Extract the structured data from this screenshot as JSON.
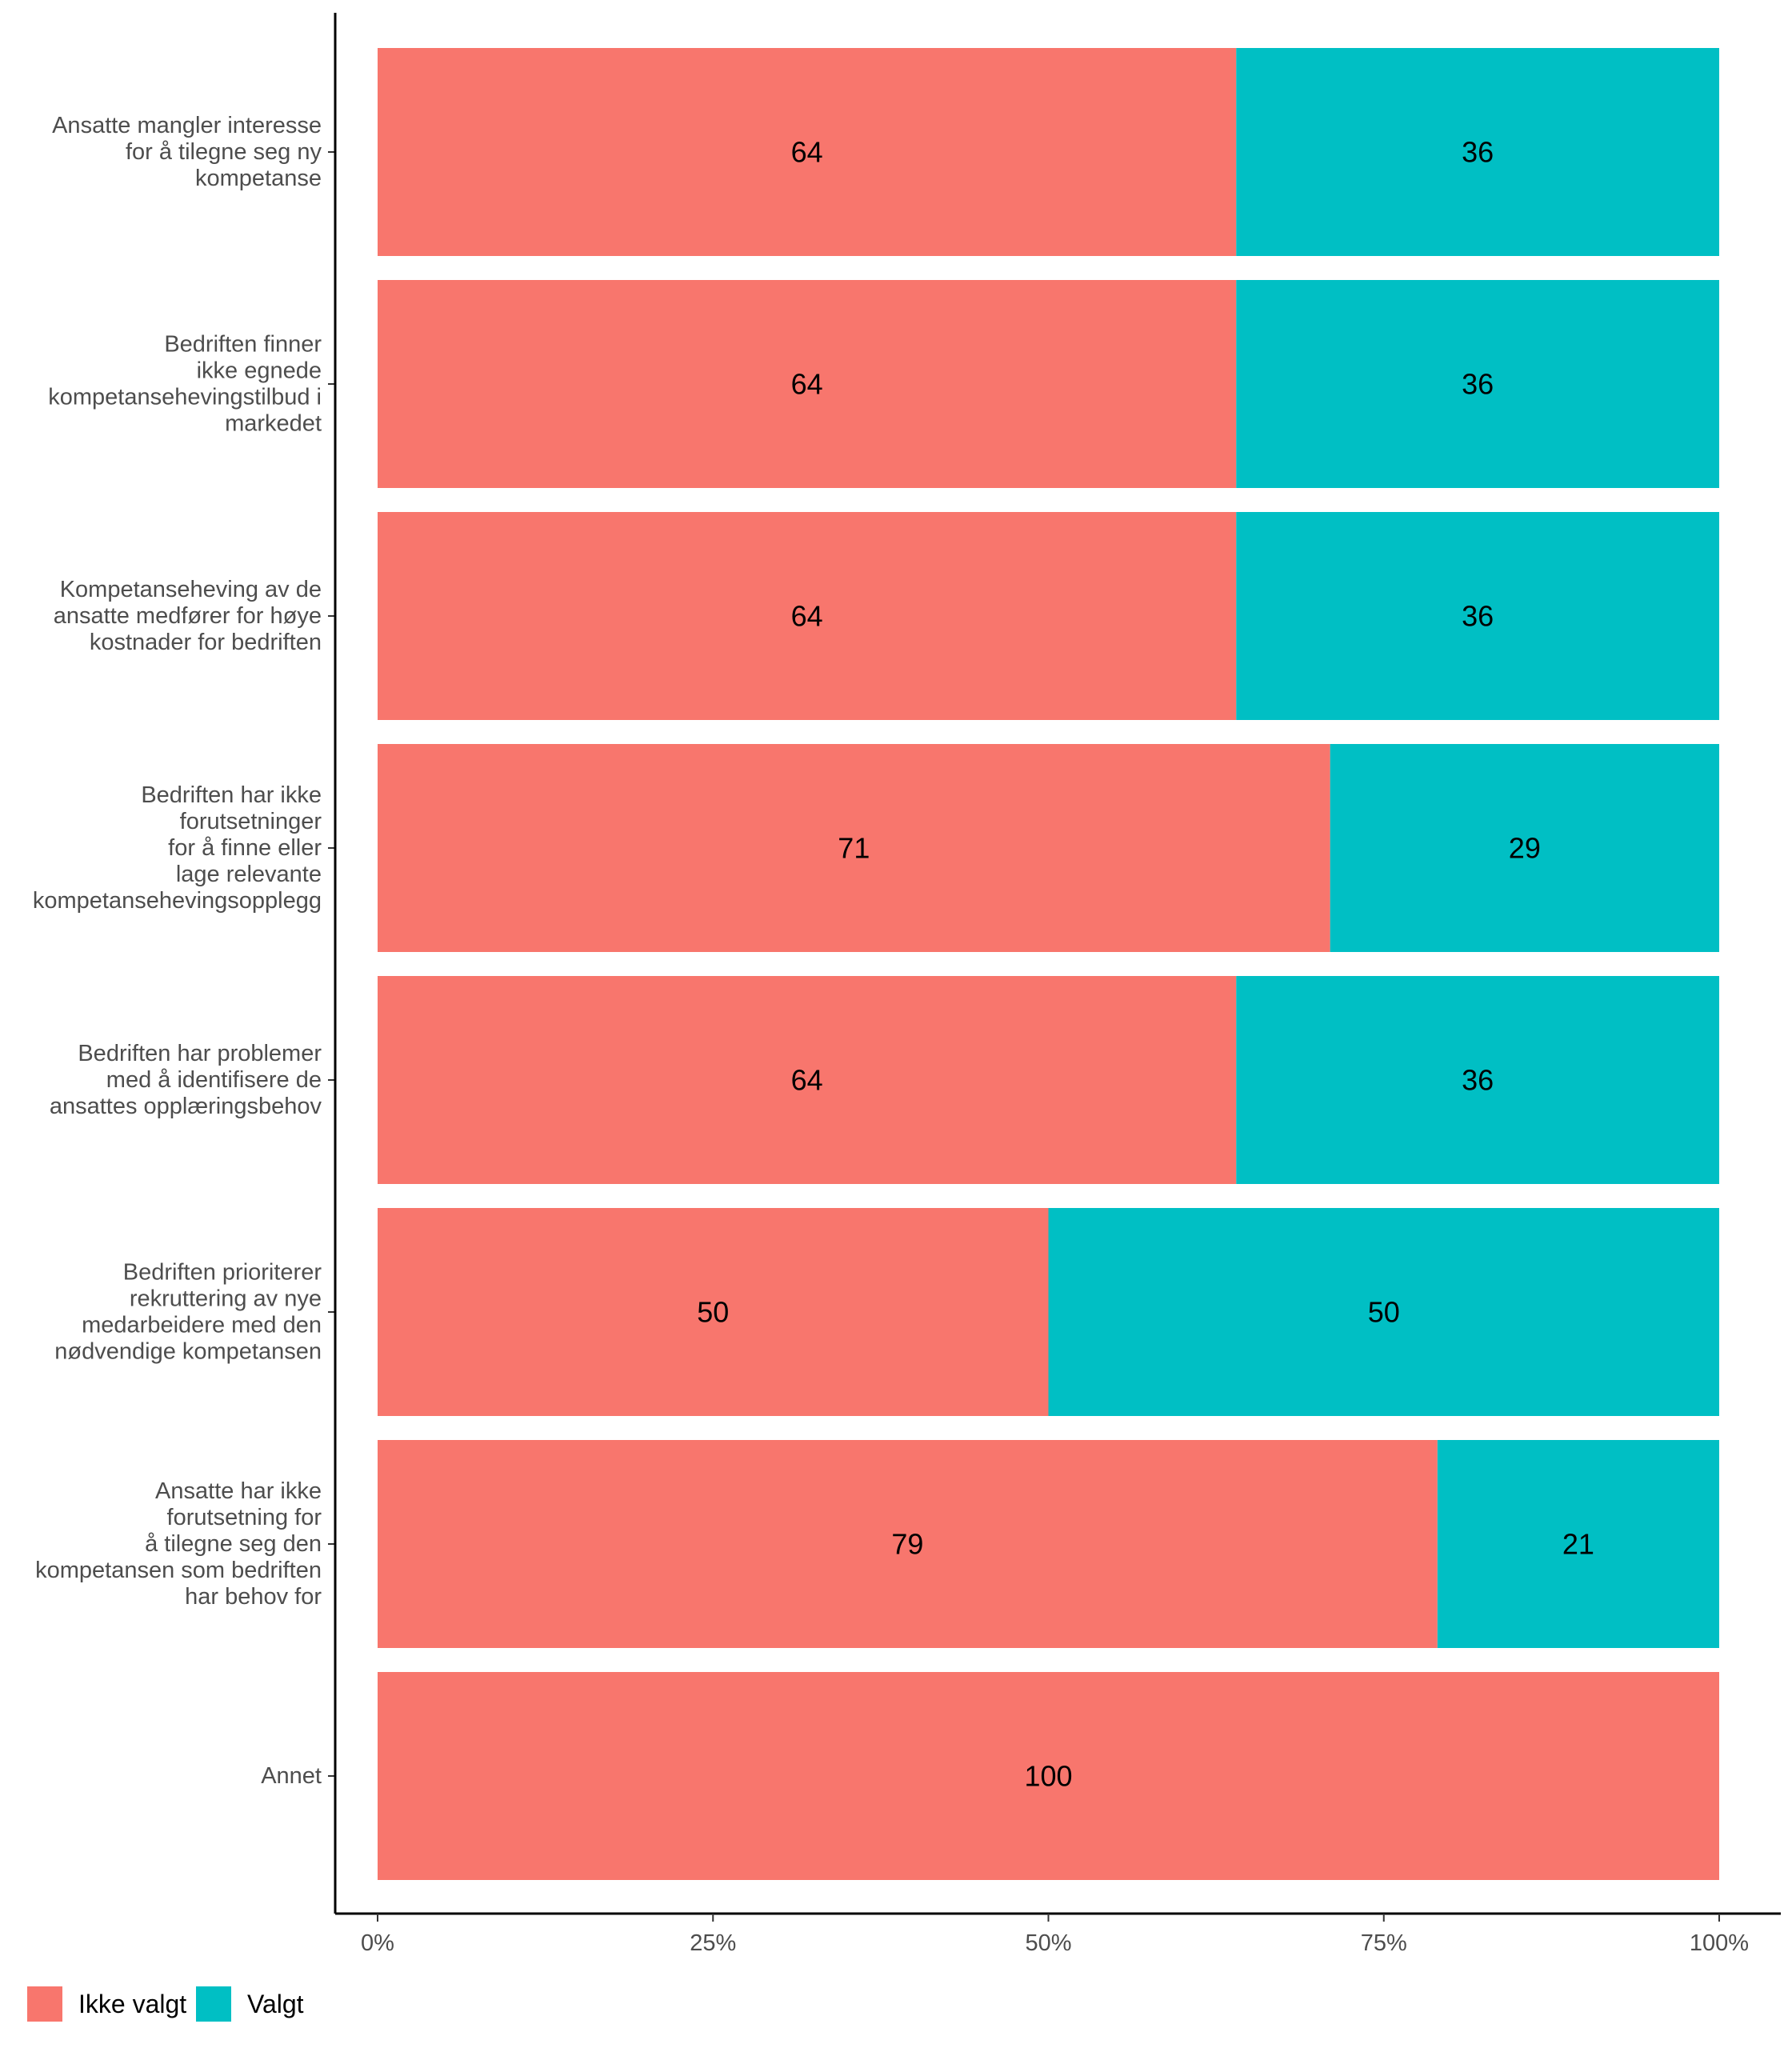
{
  "chart_data": {
    "type": "bar",
    "orientation": "horizontal",
    "stacked": true,
    "categories": [
      "Ansatte mangler interesse\nfor å tilegne seg ny\nkompetanse",
      "Bedriften finner\nikke egnede\nkompetansehevingstilbud i\nmarkedet",
      "Kompetanseheving av de\nansatte medfører for høye\nkostnader for bedriften",
      "Bedriften har ikke\nforutsetninger\nfor å finne eller\nlage relevante\nkompetansehevingsopplegg",
      "Bedriften har problemer\nmed å identifisere de\nansattes opplæringsbehov",
      "Bedriften prioriterer\nrekruttering av nye\nmedarbeidere med den\nnødvendige kompetansen",
      "Ansatte har ikke\nforutsetning for\nå tilegne seg den\nkompetansen som bedriften\nhar behov for",
      "Annet"
    ],
    "series": [
      {
        "name": "Ikke valgt",
        "color": "#F8766D",
        "values": [
          64,
          64,
          64,
          71,
          64,
          50,
          79,
          100
        ]
      },
      {
        "name": "Valgt",
        "color": "#00BFC4",
        "values": [
          36,
          36,
          36,
          29,
          36,
          50,
          21,
          0
        ]
      }
    ],
    "xlim": [
      0,
      100
    ],
    "x_ticks": [
      0,
      25,
      50,
      75,
      100
    ],
    "x_tick_labels": [
      "0%",
      "25%",
      "50%",
      "75%",
      "100%"
    ],
    "title": "",
    "xlabel": "",
    "ylabel": "",
    "grid": false,
    "legend_position": "bottom-left"
  }
}
